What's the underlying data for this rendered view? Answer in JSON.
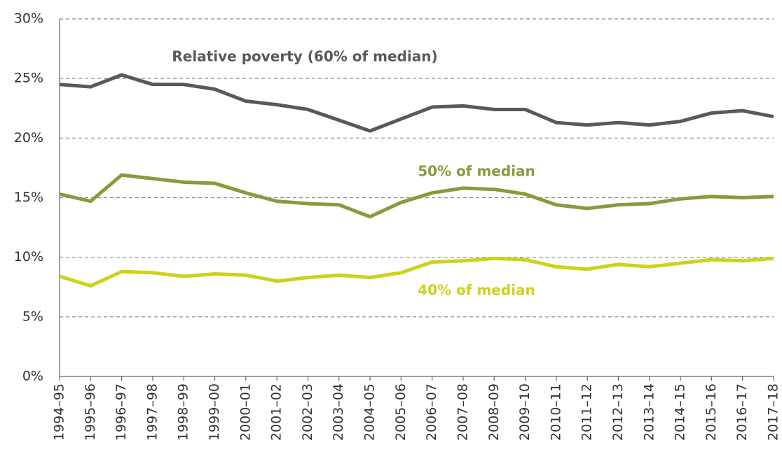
{
  "chart_data": {
    "type": "line",
    "categories": [
      "1994–95",
      "1995–96",
      "1996–97",
      "1997–98",
      "1998–99",
      "1999–00",
      "2000–01",
      "2001–02",
      "2002–03",
      "2003–04",
      "2004–05",
      "2005–06",
      "2006–07",
      "2007–08",
      "2008–09",
      "2009–10",
      "2010–11",
      "2011–12",
      "2012–13",
      "2013–14",
      "2014–15",
      "2015–16",
      "2016–17",
      "2017–18"
    ],
    "series": [
      {
        "name": "Relative poverty (60% of median)",
        "color": "#58595b",
        "values": [
          24.5,
          24.3,
          25.3,
          24.5,
          24.5,
          24.1,
          23.1,
          22.8,
          22.4,
          21.5,
          20.6,
          21.6,
          22.6,
          22.7,
          22.4,
          22.4,
          21.3,
          21.1,
          21.3,
          21.1,
          21.4,
          22.1,
          22.3,
          21.8
        ]
      },
      {
        "name": "50% of median",
        "color": "#8a9a3c",
        "values": [
          15.3,
          14.7,
          16.9,
          16.6,
          16.3,
          16.2,
          15.4,
          14.7,
          14.5,
          14.4,
          13.4,
          14.6,
          15.4,
          15.8,
          15.7,
          15.3,
          14.4,
          14.1,
          14.4,
          14.5,
          14.9,
          15.1,
          15.0,
          15.1
        ]
      },
      {
        "name": "40% of median",
        "color": "#cfd11a",
        "values": [
          8.4,
          7.6,
          8.8,
          8.7,
          8.4,
          8.6,
          8.5,
          8.0,
          8.3,
          8.5,
          8.3,
          8.7,
          9.6,
          9.7,
          9.9,
          9.8,
          9.2,
          9.0,
          9.4,
          9.2,
          9.5,
          9.8,
          9.7,
          9.9
        ]
      }
    ],
    "ylim": [
      0,
      30
    ],
    "yticks": [
      {
        "value": 0,
        "label": "0%"
      },
      {
        "value": 5,
        "label": "5%"
      },
      {
        "value": 10,
        "label": "10%"
      },
      {
        "value": 15,
        "label": "15%"
      },
      {
        "value": 20,
        "label": "20%"
      },
      {
        "value": 25,
        "label": "25%"
      },
      {
        "value": 30,
        "label": "30%"
      }
    ],
    "grid": true
  }
}
